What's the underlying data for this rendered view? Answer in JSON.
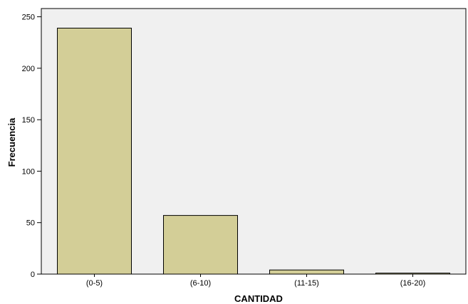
{
  "chart_data": {
    "type": "bar",
    "title": "",
    "xlabel": "CANTIDAD",
    "ylabel": "Frecuencia",
    "categories": [
      "(0-5)",
      "(6-10)",
      "(11-15)",
      "(16-20)"
    ],
    "values": [
      239,
      57,
      4,
      1
    ],
    "ylim": [
      0,
      258
    ],
    "yticks": [
      0,
      50,
      100,
      150,
      200,
      250
    ],
    "grid": false,
    "legend": "none",
    "colors": {
      "bar_fill": "#d3ce97",
      "bar_stroke": "#000000",
      "plot_background": "#f0f0f0",
      "axis": "#000000"
    }
  }
}
